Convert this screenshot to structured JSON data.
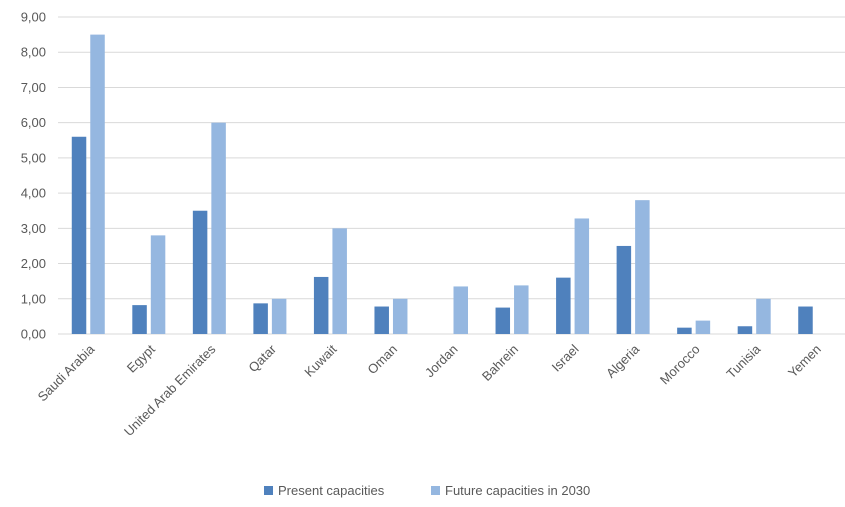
{
  "chart_data": {
    "type": "bar",
    "categories": [
      "Saudi Arabia",
      "Egypt",
      "United Arab Emirates",
      "Qatar",
      "Kuwait",
      "Oman",
      "Jordan",
      "Bahrein",
      "Israel",
      "Algeria",
      "Morocco",
      "Tunisia",
      "Yemen"
    ],
    "series": [
      {
        "name": "Present capacities",
        "color": "#4f81bd",
        "values": [
          5.6,
          0.82,
          3.5,
          0.87,
          1.62,
          0.78,
          0,
          0.75,
          1.6,
          2.5,
          0.18,
          0.22,
          0.78
        ]
      },
      {
        "name": "Future capacities in 2030",
        "color": "#95b7e0",
        "values": [
          8.5,
          2.8,
          6.0,
          1.0,
          3.0,
          1.0,
          1.35,
          1.38,
          3.28,
          3.8,
          0.38,
          1.0,
          null
        ]
      }
    ],
    "yticks": [
      "0,00",
      "1,00",
      "2,00",
      "3,00",
      "4,00",
      "5,00",
      "6,00",
      "7,00",
      "8,00",
      "9,00"
    ],
    "ylim": [
      0,
      9
    ],
    "grid": true,
    "legend_position": "bottom",
    "gridline_color": "#d9d9d9"
  }
}
